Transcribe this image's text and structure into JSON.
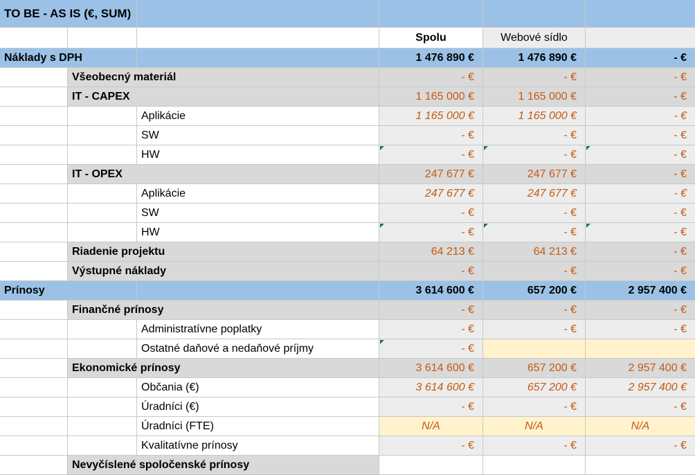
{
  "title": "TO BE - AS IS (€, SUM)",
  "header": {
    "col_total": "Spolu",
    "col_web": "Webové sídlo"
  },
  "rows": [
    {
      "label": "Náklady s DPH",
      "level": 0,
      "style": "blue",
      "v1": "1 476 890 €",
      "v2": "1 476 890 €",
      "v3": "- €"
    },
    {
      "label": "Všeobecný materiál",
      "level": 1,
      "style": "gray",
      "v1": "- €",
      "v2": "- €",
      "v3": "- €"
    },
    {
      "label": "IT - CAPEX",
      "level": 1,
      "style": "gray",
      "v1": "1 165 000 €",
      "v2": "1 165 000 €",
      "v3": "- €"
    },
    {
      "label": "Aplikácie",
      "level": 2,
      "style": "detail-italic",
      "v1": "1 165 000 €",
      "v2": "1 165 000 €",
      "v3": "- €"
    },
    {
      "label": "SW",
      "level": 2,
      "style": "detail",
      "v1": "- €",
      "v2": "- €",
      "v3": "- €"
    },
    {
      "label": "HW",
      "level": 2,
      "style": "detail-flag",
      "v1": "- €",
      "v2": "- €",
      "v3": "- €"
    },
    {
      "label": "IT - OPEX",
      "level": 1,
      "style": "gray",
      "v1": "247 677 €",
      "v2": "247 677 €",
      "v3": "- €"
    },
    {
      "label": "Aplikácie",
      "level": 2,
      "style": "detail-italic",
      "v1": "247 677 €",
      "v2": "247 677 €",
      "v3": "- €"
    },
    {
      "label": "SW",
      "level": 2,
      "style": "detail",
      "v1": "- €",
      "v2": "- €",
      "v3": "- €"
    },
    {
      "label": "HW",
      "level": 2,
      "style": "detail-flag",
      "v1": "- €",
      "v2": "- €",
      "v3": "- €"
    },
    {
      "label": "Riadenie projektu",
      "level": 1,
      "style": "gray",
      "v1": "64 213 €",
      "v2": "64 213 €",
      "v3": "- €"
    },
    {
      "label": "Výstupné náklady",
      "level": 1,
      "style": "gray",
      "v1": "- €",
      "v2": "- €",
      "v3": "- €"
    },
    {
      "label": "Prínosy",
      "level": 0,
      "style": "blue",
      "v1": "3 614 600 €",
      "v2": "657 200 €",
      "v3": "2 957 400 €"
    },
    {
      "label": "Finančné prínosy",
      "level": 1,
      "style": "gray",
      "v1": "- €",
      "v2": "- €",
      "v3": "- €"
    },
    {
      "label": "Administratívne poplatky",
      "level": 2,
      "style": "detail",
      "v1": "- €",
      "v2": "- €",
      "v3": "- €"
    },
    {
      "label": "Ostatné daňové a nedaňové príjmy",
      "level": 2,
      "style": "detail-yellow",
      "v1": "- €",
      "v2": "",
      "v3": ""
    },
    {
      "label": "Ekonomické prínosy",
      "level": 1,
      "style": "gray",
      "v1": "3 614 600 €",
      "v2": "657 200 €",
      "v3": "2 957 400 €"
    },
    {
      "label": "Občania (€)",
      "level": 2,
      "style": "detail-italic",
      "v1": "3 614 600 €",
      "v2": "657 200 €",
      "v3": "2 957 400 €"
    },
    {
      "label": "Úradníci (€)",
      "level": 2,
      "style": "detail",
      "v1": "- €",
      "v2": "- €",
      "v3": "- €"
    },
    {
      "label": "Úradníci (FTE)",
      "level": 2,
      "style": "na",
      "v1": "N/A",
      "v2": "N/A",
      "v3": "N/A"
    },
    {
      "label": "Kvalitatívne prínosy",
      "level": 2,
      "style": "detail",
      "v1": "- €",
      "v2": "- €",
      "v3": "- €"
    },
    {
      "label": "Nevyčíslené spoločenské prínosy",
      "level": 1,
      "style": "last",
      "v1": "",
      "v2": "",
      "v3": ""
    }
  ],
  "colors": {
    "header_blue": "#9bc2e6",
    "section_gray": "#d9d9d9",
    "value_orange": "#c55a11",
    "input_yellow": "#fff2cc",
    "comment_flag": "#1e7b34"
  }
}
